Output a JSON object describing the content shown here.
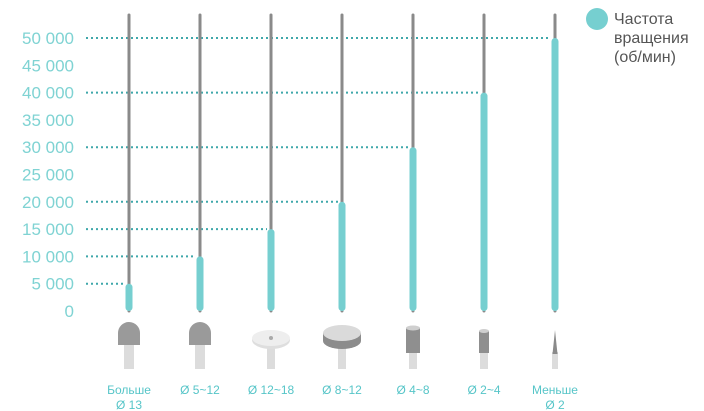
{
  "chart_data": {
    "type": "bar",
    "ylim": [
      0,
      50000
    ],
    "yticks": [
      "50 000",
      "45 000",
      "40 000",
      "35 000",
      "30 000",
      "25 000",
      "20 000",
      "15 000",
      "10 000",
      "5 000",
      "0"
    ],
    "ytick_values": [
      50000,
      45000,
      40000,
      35000,
      30000,
      25000,
      20000,
      15000,
      10000,
      5000,
      0
    ],
    "categories": [
      [
        "Больше",
        "Ø 13"
      ],
      [
        "Ø 5~12"
      ],
      [
        "Ø 12~18"
      ],
      [
        "Ø 8~12"
      ],
      [
        "Ø 4~8"
      ],
      [
        "Ø 2~4"
      ],
      [
        "Меньше",
        "Ø 2"
      ]
    ],
    "series": [
      {
        "name": "Частота вращения (об/мин)",
        "values": [
          5000,
          10000,
          15000,
          20000,
          30000,
          40000,
          50000
        ]
      }
    ],
    "tools": [
      "round-head-bit",
      "round-head-bit",
      "thin-disc-bit",
      "thick-disc-bit",
      "cylinder-bit",
      "small-cylinder-bit",
      "needle-bit"
    ],
    "legend": {
      "lines": [
        "Частота",
        "вращения",
        "(об/мин)"
      ],
      "position": "top-right"
    },
    "colors": {
      "bar": "#76cfd0",
      "rod": "#8a8a8a",
      "tick_text": "#7fd3d3",
      "dotted_line": "#3fa7aa",
      "category_text": "#56c5c8",
      "tool_head": "#9a9a9a",
      "tool_shank": "#dcdcdc"
    },
    "grid": "dotted-leaders"
  }
}
